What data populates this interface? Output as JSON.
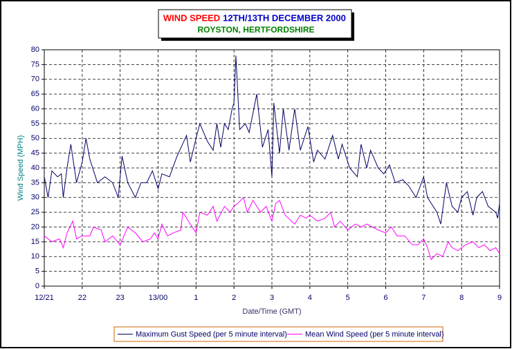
{
  "chart_data": {
    "type": "line",
    "title_parts": [
      "WIND SPEED",
      "12TH/13TH DECEMBER 2000"
    ],
    "subtitle": "ROYSTON, HERTFORDSHIRE",
    "title_colors": [
      "#ff0000",
      "#0000cc",
      "#008000"
    ],
    "xlabel": "Date/Time (GMT)",
    "ylabel": "Wind Speed (MPH)",
    "xlim": [
      0,
      12
    ],
    "xticks": [
      {
        "value": 0,
        "label": "12/21"
      },
      {
        "value": 1,
        "label": "22"
      },
      {
        "value": 2,
        "label": "23"
      },
      {
        "value": 3,
        "label": "13/00"
      },
      {
        "value": 4,
        "label": "1"
      },
      {
        "value": 5,
        "label": "2"
      },
      {
        "value": 6,
        "label": "3"
      },
      {
        "value": 7,
        "label": "4"
      },
      {
        "value": 8,
        "label": "5"
      },
      {
        "value": 9,
        "label": "6"
      },
      {
        "value": 10,
        "label": "7"
      },
      {
        "value": 11,
        "label": "8"
      },
      {
        "value": 12,
        "label": "9"
      }
    ],
    "ylim": [
      0,
      80
    ],
    "yticks": [
      0,
      5,
      10,
      15,
      20,
      25,
      30,
      35,
      40,
      45,
      50,
      55,
      60,
      65,
      70,
      75,
      80
    ],
    "grid": true,
    "series": [
      {
        "name": "Maximum Gust Speed (per 5 minute interval)",
        "color": "#000066",
        "x": [
          0,
          0.1,
          0.2,
          0.35,
          0.45,
          0.5,
          0.6,
          0.7,
          0.85,
          1.0,
          1.1,
          1.2,
          1.4,
          1.6,
          1.8,
          1.95,
          2.05,
          2.2,
          2.4,
          2.55,
          2.7,
          2.85,
          3.0,
          3.1,
          3.3,
          3.5,
          3.75,
          3.85,
          4.0,
          4.1,
          4.3,
          4.45,
          4.55,
          4.65,
          4.75,
          4.85,
          4.95,
          5.0,
          5.05,
          5.15,
          5.3,
          5.4,
          5.6,
          5.75,
          5.9,
          6.0,
          6.05,
          6.2,
          6.3,
          6.45,
          6.6,
          6.75,
          6.95,
          7.1,
          7.2,
          7.4,
          7.6,
          7.75,
          7.85,
          8.05,
          8.25,
          8.35,
          8.5,
          8.6,
          8.8,
          8.95,
          9.1,
          9.25,
          9.45,
          9.6,
          9.8,
          10.0,
          10.1,
          10.35,
          10.45,
          10.6,
          10.75,
          10.9,
          11.0,
          11.15,
          11.3,
          11.4,
          11.55,
          11.7,
          11.9,
          11.95,
          12.0
        ],
        "values": [
          37,
          30,
          39,
          37,
          38,
          30,
          40,
          48,
          35,
          42,
          50,
          43,
          35,
          37,
          35,
          30,
          44,
          35,
          30,
          35,
          35,
          39,
          33,
          38,
          37,
          44,
          51,
          42,
          50,
          55,
          49,
          46,
          55,
          47,
          55,
          53,
          60,
          62,
          78,
          53,
          55,
          52,
          65,
          47,
          53,
          37,
          62,
          45,
          60,
          46,
          60,
          46,
          54,
          42,
          46,
          43,
          51,
          43,
          48,
          40,
          37,
          48,
          40,
          46,
          40,
          38,
          41,
          35,
          36,
          34,
          30,
          37,
          30,
          25,
          21,
          35,
          27,
          25,
          30,
          32,
          24,
          30,
          32,
          27,
          25,
          23,
          28
        ]
      },
      {
        "name": "Mean Wind Speed (per 5 minute interval)",
        "color": "#ff00ff",
        "x": [
          0,
          0.2,
          0.4,
          0.5,
          0.6,
          0.75,
          0.85,
          1.0,
          1.2,
          1.3,
          1.5,
          1.6,
          1.8,
          2.0,
          2.1,
          2.2,
          2.4,
          2.6,
          2.8,
          2.9,
          3.0,
          3.1,
          3.25,
          3.4,
          3.6,
          3.65,
          3.85,
          4.0,
          4.1,
          4.3,
          4.45,
          4.55,
          4.75,
          4.9,
          5.0,
          5.1,
          5.25,
          5.35,
          5.5,
          5.7,
          5.85,
          6.0,
          6.1,
          6.2,
          6.35,
          6.6,
          6.75,
          6.9,
          7.0,
          7.2,
          7.4,
          7.55,
          7.65,
          7.8,
          8.0,
          8.2,
          8.35,
          8.5,
          8.65,
          8.8,
          9.0,
          9.15,
          9.3,
          9.5,
          9.7,
          9.85,
          10.0,
          10.1,
          10.2,
          10.35,
          10.5,
          10.65,
          10.75,
          10.9,
          11.1,
          11.3,
          11.45,
          11.6,
          11.75,
          11.9,
          12.0
        ],
        "values": [
          17,
          15,
          16,
          13,
          18,
          22,
          16,
          17,
          17,
          20,
          19,
          15,
          17,
          14,
          17,
          20,
          18,
          15,
          16,
          18,
          16,
          21,
          17,
          18,
          19,
          25,
          21,
          18,
          25,
          24,
          27,
          22,
          27,
          25,
          27,
          28,
          30,
          25,
          29,
          25,
          27,
          22,
          28,
          29,
          24,
          21,
          24,
          23,
          24,
          22,
          23,
          25,
          20,
          22,
          19,
          21,
          20,
          21,
          20,
          19,
          18,
          20,
          17,
          17,
          14,
          14,
          16,
          13,
          9,
          11,
          10,
          15,
          13,
          12,
          14,
          15,
          13,
          14,
          12,
          13,
          11
        ]
      }
    ]
  }
}
